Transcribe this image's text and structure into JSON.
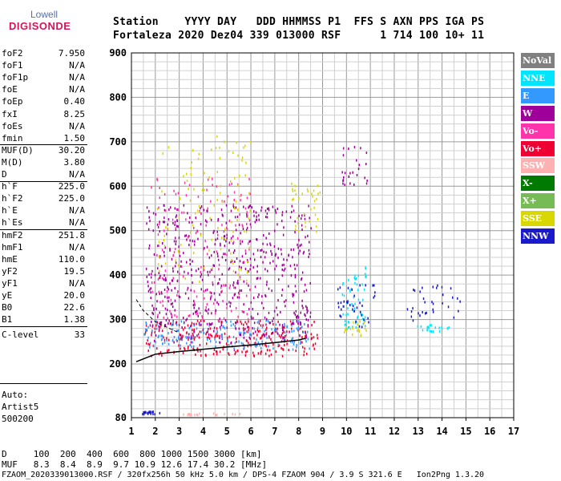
{
  "logo": {
    "top": "Lowell",
    "main": "DIGISONDE"
  },
  "header": {
    "line1": "Station    YYYY DAY   DDD HHMMSS P1  FFS S AXN PPS IGA PS",
    "line2": "Fortaleza 2020 Dez04 339 013000 RSF      1 714 100 10+ 11"
  },
  "params": [
    {
      "k": "foF2",
      "v": "7.950"
    },
    {
      "k": "foF1",
      "v": "N/A"
    },
    {
      "k": "foF1p",
      "v": "N/A"
    },
    {
      "k": "foE",
      "v": "N/A"
    },
    {
      "k": "foEp",
      "v": "0.40"
    },
    {
      "k": "fxI",
      "v": "8.25"
    },
    {
      "k": "foEs",
      "v": "N/A"
    },
    {
      "k": "fmin",
      "v": "1.50"
    },
    {
      "k": "MUF(D)",
      "v": "30.20"
    },
    {
      "k": "M(D)",
      "v": "3.80"
    },
    {
      "k": "D",
      "v": "N/A"
    },
    {
      "k": "h`F",
      "v": "225.0"
    },
    {
      "k": "h`F2",
      "v": "225.0"
    },
    {
      "k": "h`E",
      "v": "N/A"
    },
    {
      "k": "h`Es",
      "v": "N/A"
    },
    {
      "k": "hmF2",
      "v": "251.8"
    },
    {
      "k": "hmF1",
      "v": "N/A"
    },
    {
      "k": "hmE",
      "v": "110.0"
    },
    {
      "k": "yF2",
      "v": "19.5"
    },
    {
      "k": "yF1",
      "v": "N/A"
    },
    {
      "k": "yE",
      "v": "20.0"
    },
    {
      "k": "B0",
      "v": "22.6"
    },
    {
      "k": "B1",
      "v": "1.38"
    },
    {
      "k": "C-level",
      "v": "33"
    }
  ],
  "auto": {
    "label": "Auto:",
    "artist": "Artist5",
    "code": "500200"
  },
  "footer": {
    "line1": "D     100  200  400  600  800 1000 1500 3000 [km]",
    "line2": "MUF   8.3  8.4  8.9  9.7 10.9 12.6 17.4 30.2 [MHz]",
    "line3": "FZAOM_2020339013000.RSF / 320fx256h 50 kHz 5.0 km / DPS-4 FZAOM 904 / 3.9 S 321.6 E   Ion2Png 1.3.20"
  },
  "legend": [
    {
      "label": "NoVal",
      "color": "#808080"
    },
    {
      "label": "NNE",
      "color": "#00e5ff"
    },
    {
      "label": "E",
      "color": "#3399ff"
    },
    {
      "label": "W",
      "color": "#a0009a"
    },
    {
      "label": "Vo-",
      "color": "#ff33aa"
    },
    {
      "label": "Vo+",
      "color": "#ee0033"
    },
    {
      "label": "SSW",
      "color": "#ffb0b0"
    },
    {
      "label": "X-",
      "color": "#007a00"
    },
    {
      "label": "X+",
      "color": "#77bb55"
    },
    {
      "label": "SSE",
      "color": "#d8d800"
    },
    {
      "label": "NNW",
      "color": "#1a1acc"
    }
  ],
  "chart_data": {
    "type": "scatter",
    "title": "",
    "xlabel": "",
    "ylabel": "",
    "xlim": [
      1,
      17
    ],
    "ylim": [
      80,
      900
    ],
    "xticks": [
      "1",
      "2",
      "3",
      "4",
      "5",
      "6",
      "7",
      "8",
      "9",
      "10",
      "11",
      "12",
      "13",
      "14",
      "15",
      "16",
      "17"
    ],
    "yticks": [
      "80",
      "200",
      "300",
      "400",
      "500",
      "600",
      "700",
      "800",
      "900"
    ],
    "grid": true,
    "legend_position": "right",
    "profile_curve": [
      [
        1.2,
        205
      ],
      [
        2,
        222
      ],
      [
        3,
        228
      ],
      [
        4,
        233
      ],
      [
        5,
        238
      ],
      [
        6,
        243
      ],
      [
        7,
        248
      ],
      [
        8,
        254
      ],
      [
        8.3,
        258
      ]
    ],
    "trace_curve": [
      [
        1.2,
        345
      ],
      [
        1.5,
        320
      ],
      [
        2,
        295
      ],
      [
        2.5,
        282
      ],
      [
        3,
        270
      ]
    ],
    "clusters": [
      {
        "sector": "Vo+",
        "x": [
          1.5,
          8.8
        ],
        "y": [
          220,
          300
        ],
        "density": 0.55
      },
      {
        "sector": "E",
        "x": [
          1.5,
          8.5
        ],
        "y": [
          235,
          300
        ],
        "density": 0.45
      },
      {
        "sector": "W",
        "x": [
          1.6,
          8.5
        ],
        "y": [
          250,
          560
        ],
        "density": 0.35
      },
      {
        "sector": "Vo-",
        "x": [
          1.8,
          6
        ],
        "y": [
          300,
          620
        ],
        "density": 0.15
      },
      {
        "sector": "SSE",
        "x": [
          2,
          6
        ],
        "y": [
          380,
          720
        ],
        "density": 0.1
      },
      {
        "sector": "NNE",
        "x": [
          9.8,
          10.8
        ],
        "y": [
          280,
          420
        ],
        "density": 0.5
      },
      {
        "sector": "SSE",
        "x": [
          9.7,
          11
        ],
        "y": [
          265,
          300
        ],
        "density": 0.5
      },
      {
        "sector": "NNW",
        "x": [
          9.6,
          11.2
        ],
        "y": [
          285,
          380
        ],
        "density": 0.3
      },
      {
        "sector": "NNW",
        "x": [
          12.3,
          14.8
        ],
        "y": [
          300,
          380
        ],
        "density": 0.2
      },
      {
        "sector": "NNE",
        "x": [
          12.6,
          14.3
        ],
        "y": [
          275,
          290
        ],
        "density": 0.4
      },
      {
        "sector": "W",
        "x": [
          9.8,
          10.9
        ],
        "y": [
          600,
          700
        ],
        "density": 0.3
      },
      {
        "sector": "SSE",
        "x": [
          7.6,
          8.9
        ],
        "y": [
          500,
          610
        ],
        "density": 0.3
      },
      {
        "sector": "SSW",
        "x": [
          3,
          5.6
        ],
        "y": [
          88,
          92
        ],
        "density": 0.12
      },
      {
        "sector": "NNW",
        "x": [
          1.4,
          2.2
        ],
        "y": [
          90,
          96
        ],
        "density": 0.3
      }
    ]
  }
}
